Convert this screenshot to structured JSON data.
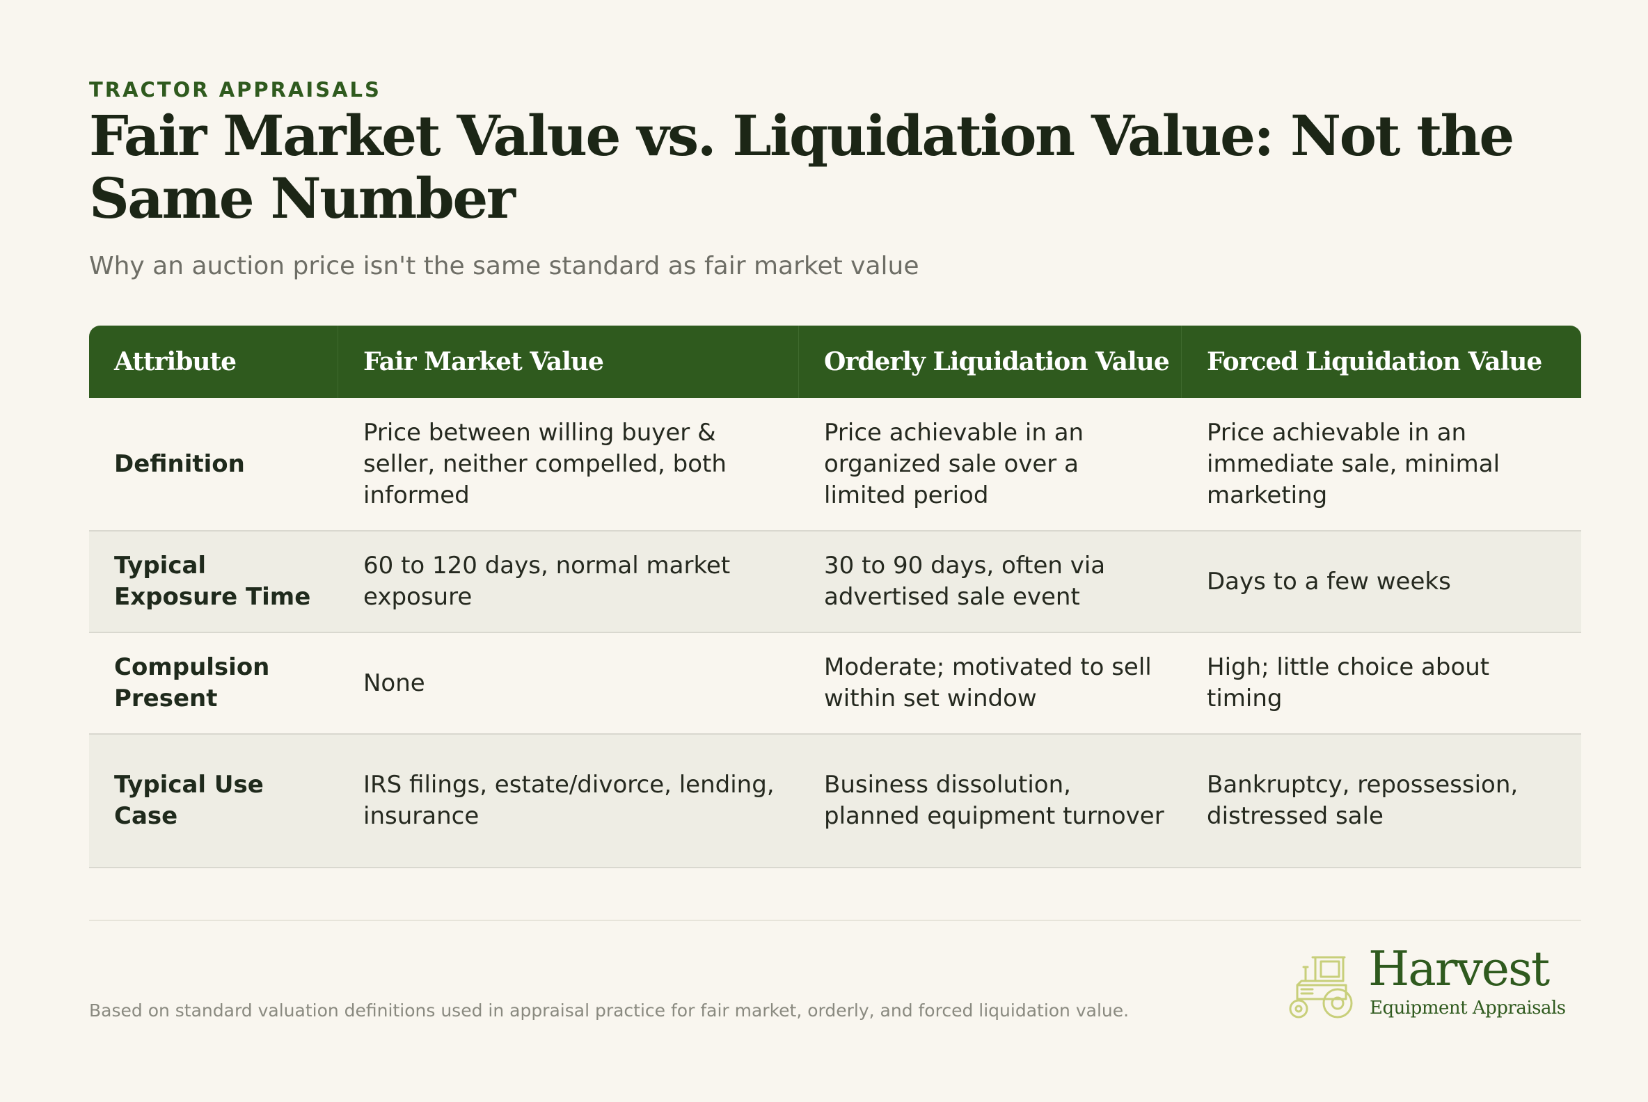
{
  "header": {
    "eyebrow": "TRACTOR APPRAISALS",
    "title": "Fair Market Value vs. Liquidation Value: Not the Same Number",
    "subtitle": "Why an auction price isn't the same standard as fair market value"
  },
  "table": {
    "columns": [
      "Attribute",
      "Fair Market Value",
      "Orderly Liquidation Value",
      "Forced Liquidation Value"
    ],
    "rows": [
      {
        "attribute": "Definition",
        "fmv": "Price between willing buyer & seller, neither compelled, both informed",
        "olv": "Price achievable in an organized sale over a limited period",
        "flv": "Price achievable in an immediate sale, minimal marketing"
      },
      {
        "attribute": "Typical Exposure Time",
        "fmv": "60 to 120 days, normal market exposure",
        "olv": "30 to 90 days, often via advertised sale event",
        "flv": "Days to a few weeks"
      },
      {
        "attribute": "Compulsion Present",
        "fmv": "None",
        "olv": "Moderate; motivated to sell within set window",
        "flv": "High; little choice about timing"
      },
      {
        "attribute": "Typical Use Case",
        "fmv": "IRS filings, estate/divorce, lending, insurance",
        "olv": "Business dissolution, planned equipment turnover",
        "flv": "Bankruptcy, repossession, distressed sale"
      }
    ]
  },
  "footer": {
    "note": "Based on standard valuation definitions used in appraisal practice for fair market, orderly, and forced liquidation value.",
    "logo": {
      "icon": "tractor-icon",
      "name": "Harvest",
      "tagline": "Equipment Appraisals"
    }
  },
  "colors": {
    "accent": "#2f5a1e",
    "background": "#f9f6ef",
    "row_alt": "#eeede4",
    "logo_icon": "#c8cf7a"
  }
}
